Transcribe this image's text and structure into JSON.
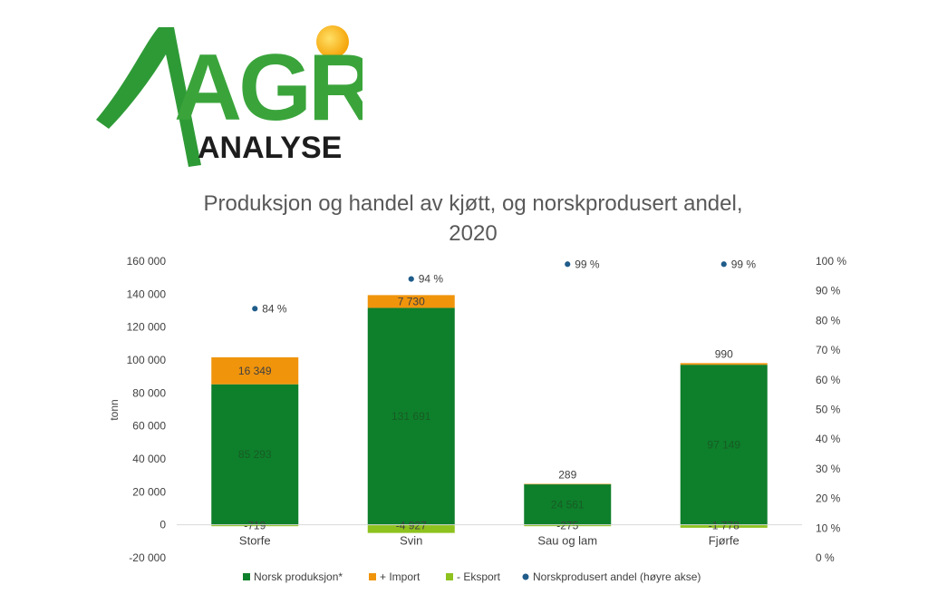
{
  "logo": {
    "text_main": "AGRI",
    "text_sub": "ANALYSE"
  },
  "chart_data": {
    "type": "bar",
    "stacked": true,
    "title_line1": "Produksjon og handel av kjøtt, og norskprodusert andel,",
    "title_line2": "2020",
    "ylabel": "tonn",
    "categories": [
      "Storfe",
      "Svin",
      "Sau og lam",
      "Fjørfe"
    ],
    "ylim": [
      -20000,
      160000
    ],
    "y_ticks": [
      -20000,
      0,
      20000,
      40000,
      60000,
      80000,
      100000,
      120000,
      140000,
      160000
    ],
    "y_tick_labels": [
      "-20 000",
      "0",
      "20 000",
      "40 000",
      "60 000",
      "80 000",
      "100 000",
      "120 000",
      "140 000",
      "160 000"
    ],
    "y2lim": [
      0,
      100
    ],
    "y2_ticks": [
      0,
      10,
      20,
      30,
      40,
      50,
      60,
      70,
      80,
      90,
      100
    ],
    "y2_tick_labels": [
      "0 %",
      "10 %",
      "20 %",
      "30 %",
      "40 %",
      "50 %",
      "60 %",
      "70 %",
      "80 %",
      "90 %",
      "100 %"
    ],
    "series": [
      {
        "name": "Norsk produksjon*",
        "color": "#0e7f2b",
        "values": [
          85293,
          131691,
          24561,
          97149
        ],
        "labels": [
          "85 293",
          "131 691",
          "24 561",
          "97 149"
        ]
      },
      {
        "name": "+ Import",
        "color": "#f0940c",
        "values": [
          16349,
          7730,
          289,
          990
        ],
        "labels": [
          "16 349",
          "7 730",
          "289",
          "990"
        ]
      },
      {
        "name": "- Eksport",
        "color": "#8ec21e",
        "values": [
          -719,
          -4927,
          -275,
          -1778
        ],
        "labels": [
          "-719",
          "-4 927",
          "-275",
          "-1 778"
        ]
      },
      {
        "name": "Norskprodusert andel (høyre akse)",
        "color": "#1f5c8a",
        "type": "scatter",
        "axis": "right",
        "values": [
          84,
          94,
          99,
          99
        ],
        "labels": [
          "84 %",
          "94 %",
          "99 %",
          "99 %"
        ]
      }
    ],
    "legend_position": "bottom",
    "grid": false
  }
}
